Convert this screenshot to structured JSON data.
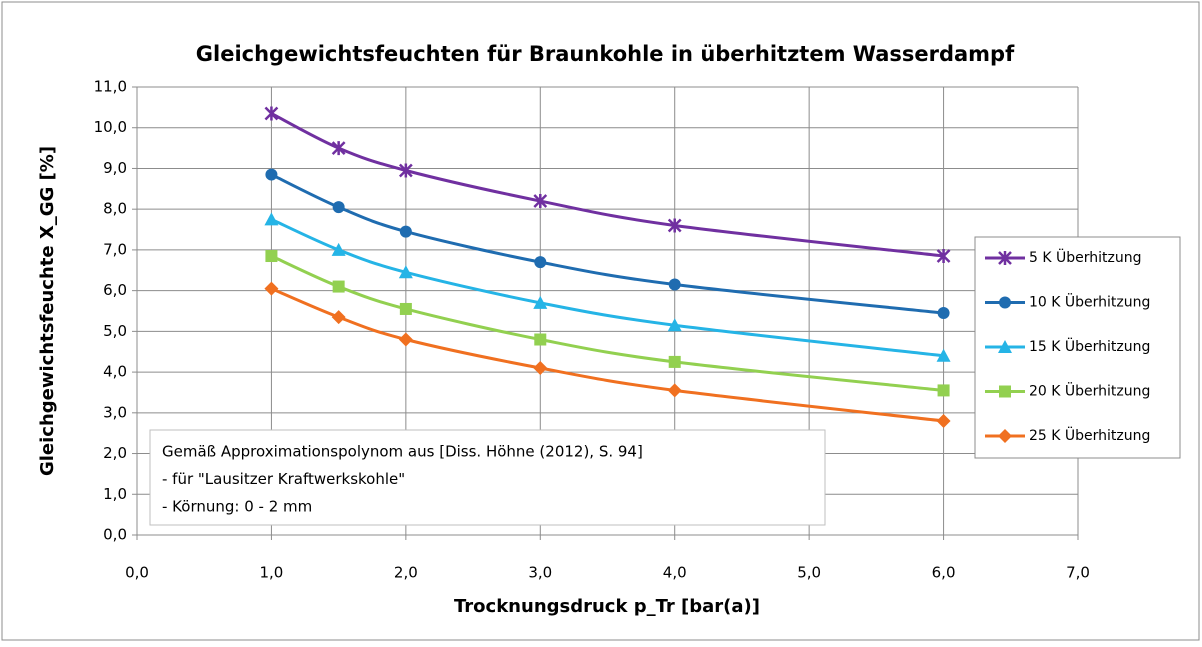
{
  "chart_data": {
    "type": "scatter_smooth",
    "title": "Gleichgewichtsfeuchten für Braunkohle in überhitztem Wasserdampf",
    "x_label": "Trocknungsdruck p_Tr [bar(a)]",
    "y_label": "Gleichgewichtsfeuchte X_GG [%]",
    "x": [
      1,
      1.5,
      2,
      3,
      4,
      6
    ],
    "series": [
      {
        "name": "5 K Überhitzung",
        "color": "#7030a0",
        "marker": "star",
        "values": [
          10.35,
          9.5,
          8.95,
          8.2,
          7.6,
          6.85
        ]
      },
      {
        "name": "10 K Überhitzung",
        "color": "#1f6cb0",
        "marker": "circle",
        "values": [
          8.85,
          8.05,
          7.45,
          6.7,
          6.15,
          5.45
        ]
      },
      {
        "name": "15 K Überhitzung",
        "color": "#25b4e6",
        "marker": "triangle",
        "values": [
          7.75,
          7.0,
          6.45,
          5.7,
          5.15,
          4.4
        ]
      },
      {
        "name": "20 K Überhitzung",
        "color": "#92d050",
        "marker": "square",
        "values": [
          6.85,
          6.1,
          5.55,
          4.8,
          4.25,
          3.55
        ]
      },
      {
        "name": "25 K Überhitzung",
        "color": "#f07020",
        "marker": "diamond",
        "values": [
          6.05,
          5.35,
          4.8,
          4.1,
          3.55,
          2.8
        ]
      }
    ],
    "xlim": [
      0,
      7
    ],
    "xticks": [
      {
        "value": 0,
        "label": "0,0"
      },
      {
        "value": 1,
        "label": "1,0"
      },
      {
        "value": 2,
        "label": "2,0"
      },
      {
        "value": 3,
        "label": "3,0"
      },
      {
        "value": 4,
        "label": "4,0"
      },
      {
        "value": 5,
        "label": "5,0"
      },
      {
        "value": 6,
        "label": "6,0"
      },
      {
        "value": 7,
        "label": "7,0"
      }
    ],
    "ylim": [
      0,
      11
    ],
    "yticks": [
      {
        "value": 0,
        "label": "0,0"
      },
      {
        "value": 1,
        "label": "1,0"
      },
      {
        "value": 2,
        "label": "2,0"
      },
      {
        "value": 3,
        "label": "3,0"
      },
      {
        "value": 4,
        "label": "4,0"
      },
      {
        "value": 5,
        "label": "5,0"
      },
      {
        "value": 6,
        "label": "6,0"
      },
      {
        "value": 7,
        "label": "7,0"
      },
      {
        "value": 8,
        "label": "8,0"
      },
      {
        "value": 9,
        "label": "9,0"
      },
      {
        "value": 10,
        "label": "10,0"
      },
      {
        "value": 11,
        "label": "11,0"
      }
    ],
    "grid": true,
    "legend": "right",
    "annotation": [
      "Gemäß Approximationspolynom aus [Diss. Höhne (2012), S. 94]",
      "- für \"Lausitzer Kraftwerkskohle\"",
      "- Körnung: 0 - 2 mm"
    ]
  }
}
